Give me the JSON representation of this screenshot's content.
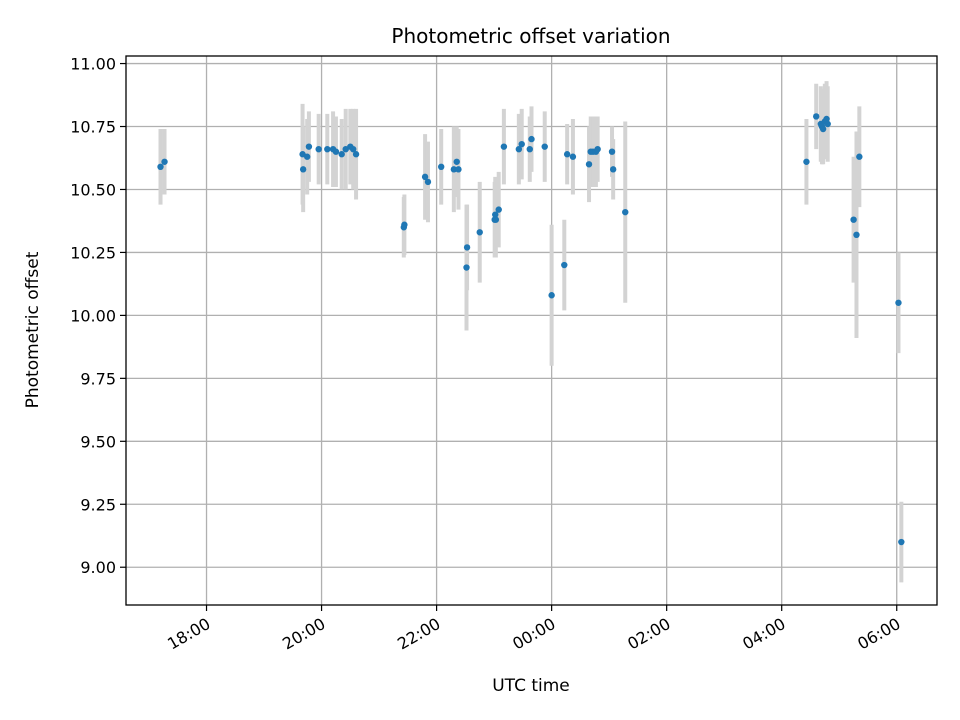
{
  "colors": {
    "point": "#1f77b4",
    "errorbar": "#d3d3d3",
    "grid": "#b0b0b0",
    "axis": "#000000",
    "background": "#ffffff"
  },
  "chart_data": {
    "type": "scatter",
    "title": "Photometric offset variation",
    "xlabel": "UTC time",
    "ylabel": "Photometric offset",
    "grid": true,
    "xlim_hours": [
      16.6,
      30.7
    ],
    "ylim": [
      8.85,
      11.03
    ],
    "xticks": [
      {
        "hour": 18,
        "label": "18:00"
      },
      {
        "hour": 20,
        "label": "20:00"
      },
      {
        "hour": 22,
        "label": "22:00"
      },
      {
        "hour": 24,
        "label": "00:00"
      },
      {
        "hour": 26,
        "label": "02:00"
      },
      {
        "hour": 28,
        "label": "04:00"
      },
      {
        "hour": 30,
        "label": "06:00"
      }
    ],
    "yticks": [
      {
        "value": 9.0,
        "label": "9.00"
      },
      {
        "value": 9.25,
        "label": "9.25"
      },
      {
        "value": 9.5,
        "label": "9.50"
      },
      {
        "value": 9.75,
        "label": "9.75"
      },
      {
        "value": 10.0,
        "label": "10.00"
      },
      {
        "value": 10.25,
        "label": "10.25"
      },
      {
        "value": 10.5,
        "label": "10.50"
      },
      {
        "value": 10.75,
        "label": "10.75"
      },
      {
        "value": 11.0,
        "label": "11.00"
      }
    ],
    "series": [
      {
        "name": "offset",
        "x_hours_utc": [
          17.2,
          17.27,
          19.67,
          19.68,
          19.75,
          19.78,
          19.95,
          20.1,
          20.2,
          20.25,
          20.35,
          20.42,
          20.5,
          20.55,
          20.6,
          21.43,
          21.44,
          21.8,
          21.85,
          22.08,
          22.3,
          22.35,
          22.38,
          22.52,
          22.53,
          22.75,
          23.01,
          23.02,
          23.03,
          23.08,
          23.17,
          23.43,
          23.48,
          23.62,
          23.65,
          23.88,
          24.0,
          24.22,
          24.27,
          24.37,
          24.65,
          24.68,
          24.72,
          24.77,
          24.8,
          25.05,
          25.07,
          25.28,
          28.43,
          28.6,
          28.68,
          28.7,
          28.72,
          28.75,
          28.78,
          28.8,
          29.25,
          29.3,
          29.35,
          30.03,
          30.08
        ],
        "y": [
          10.59,
          10.61,
          10.64,
          10.58,
          10.63,
          10.67,
          10.66,
          10.66,
          10.66,
          10.65,
          10.64,
          10.66,
          10.67,
          10.66,
          10.64,
          10.35,
          10.36,
          10.55,
          10.53,
          10.59,
          10.58,
          10.61,
          10.58,
          10.19,
          10.27,
          10.33,
          10.38,
          10.4,
          10.38,
          10.42,
          10.67,
          10.66,
          10.68,
          10.66,
          10.7,
          10.67,
          10.08,
          10.2,
          10.64,
          10.63,
          10.6,
          10.65,
          10.65,
          10.65,
          10.66,
          10.65,
          10.58,
          10.41,
          10.61,
          10.79,
          10.76,
          10.75,
          10.74,
          10.77,
          10.78,
          10.76,
          10.38,
          10.32,
          10.63,
          10.05,
          9.1
        ],
        "y_err": [
          0.15,
          0.13,
          0.2,
          0.17,
          0.15,
          0.14,
          0.14,
          0.14,
          0.15,
          0.14,
          0.14,
          0.16,
          0.15,
          0.16,
          0.18,
          0.12,
          0.12,
          0.17,
          0.16,
          0.15,
          0.17,
          0.14,
          0.16,
          0.25,
          0.17,
          0.2,
          0.15,
          0.15,
          0.15,
          0.15,
          0.15,
          0.14,
          0.14,
          0.13,
          0.13,
          0.14,
          0.28,
          0.18,
          0.12,
          0.15,
          0.15,
          0.14,
          0.14,
          0.14,
          0.13,
          0.1,
          0.12,
          0.36,
          0.17,
          0.13,
          0.15,
          0.15,
          0.14,
          0.15,
          0.15,
          0.15,
          0.25,
          0.41,
          0.2,
          0.2,
          0.16
        ]
      }
    ]
  }
}
